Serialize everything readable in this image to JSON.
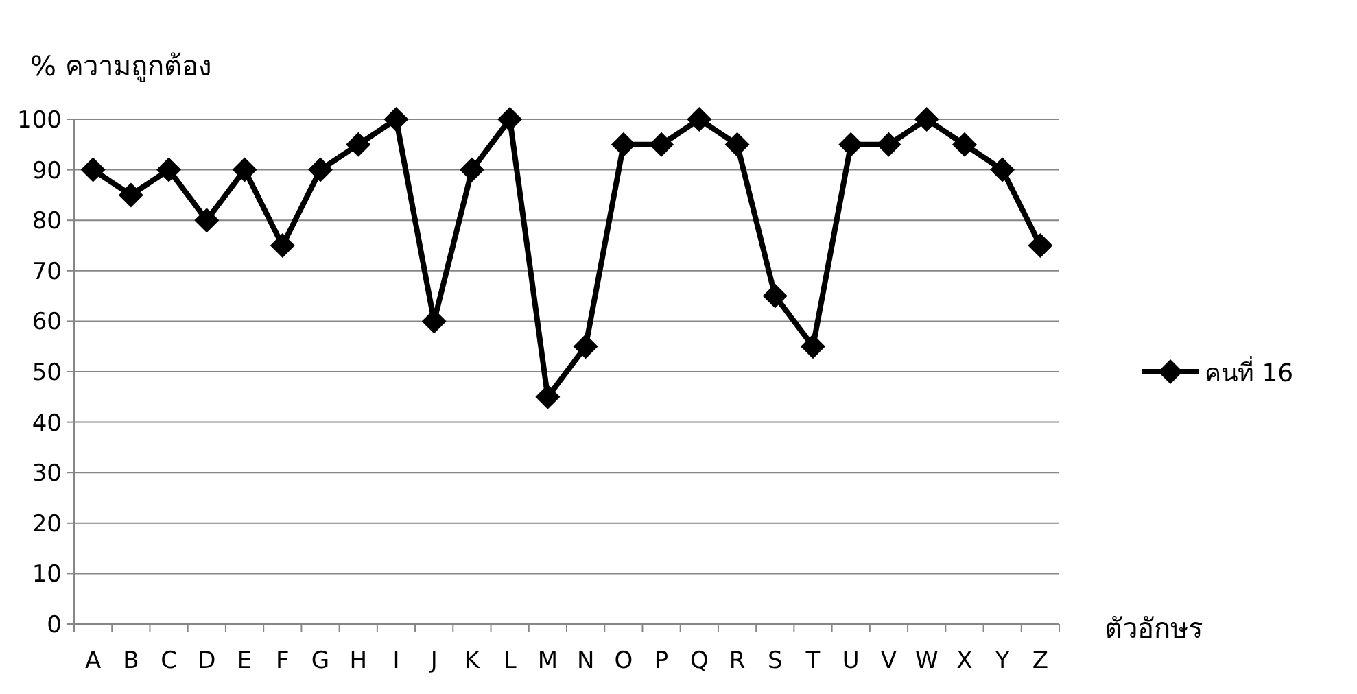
{
  "chart_data": {
    "type": "line",
    "ylabel": "% ความถูกต้อง",
    "xlabel": "ตัวอักษร",
    "categories": [
      "A",
      "B",
      "C",
      "D",
      "E",
      "F",
      "G",
      "H",
      "I",
      "J",
      "K",
      "L",
      "M",
      "N",
      "O",
      "P",
      "Q",
      "R",
      "S",
      "T",
      "U",
      "V",
      "W",
      "X",
      "Y",
      "Z"
    ],
    "series": [
      {
        "name": "คนที่ 16",
        "color": "#000000",
        "values": [
          90,
          85,
          90,
          80,
          90,
          75,
          90,
          95,
          100,
          60,
          90,
          100,
          45,
          55,
          95,
          95,
          100,
          95,
          65,
          55,
          95,
          95,
          100,
          95,
          90,
          75
        ]
      }
    ],
    "ylim": [
      0,
      100
    ],
    "yticks": [
      0,
      10,
      20,
      30,
      40,
      50,
      60,
      70,
      80,
      90,
      100
    ],
    "grid": "y",
    "legend": "right",
    "marker": "diamond",
    "line_style": "solid"
  }
}
